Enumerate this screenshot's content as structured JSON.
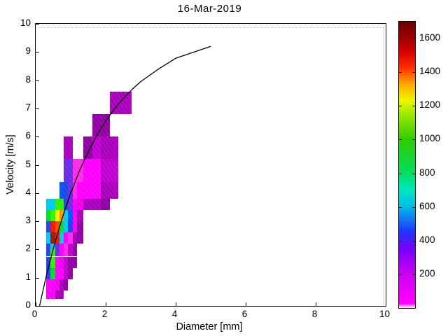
{
  "figure": {
    "title": "16-Mar-2019",
    "background": "#ffffff"
  },
  "axes": {
    "xlabel": "Diameter [mm]",
    "ylabel": "Velocity [m/s]",
    "xticks": [
      0,
      2,
      4,
      6,
      8,
      10
    ],
    "yticks": [
      0,
      1,
      2,
      3,
      4,
      5,
      6,
      7,
      8,
      9,
      10
    ],
    "xlim": [
      0,
      10
    ],
    "ylim": [
      0,
      10
    ],
    "box": true
  },
  "colorbar": {
    "range": [
      0,
      1700
    ],
    "ticks": [
      200,
      400,
      600,
      800,
      1000,
      1200,
      1400,
      1600
    ],
    "gradient": [
      [
        0.0,
        "#FFFFFF"
      ],
      [
        1.5,
        "#FF00FF"
      ],
      [
        11.8,
        "#CC00F0"
      ],
      [
        20.6,
        "#7700F8"
      ],
      [
        26.5,
        "#2233FF"
      ],
      [
        35.3,
        "#00BBE8"
      ],
      [
        41.2,
        "#00E8C0"
      ],
      [
        47.1,
        "#00E060"
      ],
      [
        58.8,
        "#30CC00"
      ],
      [
        67.6,
        "#99E800"
      ],
      [
        72.4,
        "#EEF500"
      ],
      [
        78.2,
        "#FFAA00"
      ],
      [
        84.1,
        "#FF2A00"
      ],
      [
        89.4,
        "#D40000"
      ],
      [
        95.3,
        "#960000"
      ],
      [
        100.0,
        "#6A0000"
      ]
    ]
  },
  "palette": {
    "magenta": {
      "hex": "#FF00FF",
      "count": 80
    },
    "magenta2": {
      "hex": "#F200EE",
      "count": 120
    },
    "pink": {
      "hex": "#FF2BE8",
      "count": 60
    },
    "mpurple": {
      "hex": "#C000D0",
      "count": 170
    },
    "purple": {
      "hex": "#AA00BC",
      "count": 200
    },
    "darkpurple": {
      "hex": "#9000A4",
      "count": 240
    },
    "violet": {
      "hex": "#6D2BE8",
      "count": 330
    },
    "blue": {
      "hex": "#2244E8",
      "count": 420
    },
    "brightblue": {
      "hex": "#0055FF",
      "count": 480
    },
    "cyan": {
      "hex": "#00C8F0",
      "count": 620
    },
    "green": {
      "hex": "#00DC28",
      "count": 850
    },
    "brightgreen": {
      "hex": "#33F000",
      "count": 1000
    },
    "yellow": {
      "hex": "#E8F800",
      "count": 1200
    },
    "orange": {
      "hex": "#FF9100",
      "count": 1330
    },
    "redorange": {
      "hex": "#FF4400",
      "count": 1400
    },
    "red": {
      "hex": "#F01800",
      "count": 1500
    },
    "darkred": {
      "hex": "#8A2015",
      "count": 1680
    }
  },
  "chart_data": {
    "type": "heatmap",
    "title": "16-Mar-2019",
    "xlabel": "Diameter [mm]",
    "ylabel": "Velocity [m/s]",
    "xlim": [
      0,
      10
    ],
    "ylim": [
      0,
      10
    ],
    "colorbar_range": [
      0,
      1700
    ],
    "legend_position": "right-colorbar",
    "grid": false,
    "cells": [
      [
        0.312,
        0.562,
        0.25,
        0.55,
        "magenta"
      ],
      [
        0.562,
        0.812,
        0.25,
        0.55,
        "purple"
      ],
      [
        0.312,
        0.562,
        0.55,
        0.95,
        "magenta"
      ],
      [
        0.562,
        0.687,
        0.55,
        0.95,
        "magenta2"
      ],
      [
        0.687,
        0.812,
        0.55,
        0.95,
        "purple"
      ],
      [
        0.812,
        0.937,
        0.55,
        0.95,
        "darkpurple"
      ],
      [
        0.312,
        0.437,
        0.95,
        1.35,
        "blue"
      ],
      [
        0.437,
        0.562,
        0.95,
        1.35,
        "green"
      ],
      [
        0.562,
        0.812,
        0.95,
        1.35,
        "magenta"
      ],
      [
        0.812,
        0.937,
        0.95,
        1.35,
        "mpurple"
      ],
      [
        0.937,
        1.062,
        0.95,
        1.35,
        "darkpurple"
      ],
      [
        0.312,
        0.437,
        1.35,
        1.75,
        "blue"
      ],
      [
        0.437,
        0.562,
        1.35,
        1.75,
        "brightgreen"
      ],
      [
        0.562,
        0.687,
        1.35,
        1.75,
        "magenta"
      ],
      [
        0.687,
        0.812,
        1.35,
        1.75,
        "magenta2"
      ],
      [
        0.812,
        0.937,
        1.35,
        1.75,
        "mpurple"
      ],
      [
        0.937,
        1.187,
        1.35,
        1.75,
        "darkpurple"
      ],
      [
        0.312,
        0.437,
        1.75,
        2.2,
        "blue"
      ],
      [
        0.437,
        0.562,
        1.75,
        2.0,
        "brightgreen"
      ],
      [
        0.437,
        0.562,
        2.0,
        2.2,
        "cyan"
      ],
      [
        0.562,
        0.687,
        1.75,
        2.2,
        "violet"
      ],
      [
        0.687,
        0.812,
        1.75,
        2.2,
        "magenta"
      ],
      [
        0.812,
        0.937,
        1.75,
        2.2,
        "pink"
      ],
      [
        0.937,
        1.062,
        1.75,
        2.2,
        "mpurple"
      ],
      [
        1.062,
        1.187,
        1.75,
        2.2,
        "darkpurple"
      ],
      [
        0.312,
        0.437,
        2.2,
        2.6,
        "cyan"
      ],
      [
        0.437,
        0.562,
        2.2,
        2.6,
        "darkred"
      ],
      [
        0.562,
        0.687,
        2.2,
        2.6,
        "red"
      ],
      [
        0.687,
        0.812,
        2.2,
        2.6,
        "cyan"
      ],
      [
        0.812,
        0.937,
        2.2,
        2.6,
        "magenta"
      ],
      [
        0.937,
        1.062,
        2.2,
        2.6,
        "pink"
      ],
      [
        1.062,
        1.187,
        2.2,
        2.6,
        "purple"
      ],
      [
        1.187,
        1.375,
        2.2,
        2.6,
        "darkpurple"
      ],
      [
        0.312,
        0.437,
        2.6,
        3.0,
        "blue"
      ],
      [
        0.437,
        0.562,
        2.6,
        3.0,
        "red"
      ],
      [
        0.562,
        0.687,
        2.6,
        3.0,
        "redorange"
      ],
      [
        0.687,
        0.812,
        2.6,
        3.0,
        "green"
      ],
      [
        0.812,
        0.937,
        2.6,
        3.0,
        "cyan"
      ],
      [
        0.937,
        1.062,
        2.6,
        3.0,
        "blue"
      ],
      [
        1.062,
        1.187,
        2.6,
        3.0,
        "magenta"
      ],
      [
        1.187,
        1.375,
        2.6,
        3.0,
        "darkpurple"
      ],
      [
        0.312,
        0.437,
        3.0,
        3.4,
        "green"
      ],
      [
        0.437,
        0.562,
        3.0,
        3.4,
        "brightgreen"
      ],
      [
        0.562,
        0.687,
        3.0,
        3.4,
        "yellow"
      ],
      [
        0.687,
        0.812,
        3.0,
        3.4,
        "orange"
      ],
      [
        0.812,
        0.937,
        3.0,
        3.4,
        "cyan"
      ],
      [
        0.937,
        1.062,
        3.0,
        3.4,
        "brightblue"
      ],
      [
        1.062,
        1.187,
        3.0,
        3.4,
        "magenta"
      ],
      [
        1.187,
        1.375,
        3.0,
        3.4,
        "purple"
      ],
      [
        0.312,
        0.562,
        3.4,
        3.8,
        "cyan"
      ],
      [
        0.562,
        0.812,
        3.4,
        3.8,
        "brightgreen"
      ],
      [
        0.812,
        0.937,
        3.4,
        3.8,
        "blue"
      ],
      [
        0.937,
        1.062,
        3.4,
        3.8,
        "violet"
      ],
      [
        1.062,
        1.187,
        3.4,
        3.8,
        "magenta"
      ],
      [
        1.187,
        1.375,
        3.4,
        3.8,
        "magenta2"
      ],
      [
        1.375,
        1.625,
        3.4,
        3.8,
        "purple"
      ],
      [
        1.625,
        1.875,
        3.4,
        3.8,
        "purple"
      ],
      [
        1.875,
        2.125,
        3.4,
        3.8,
        "darkpurple"
      ],
      [
        0.687,
        0.812,
        3.8,
        4.4,
        "brightblue"
      ],
      [
        0.812,
        0.937,
        3.8,
        4.4,
        "blue"
      ],
      [
        0.937,
        1.062,
        3.8,
        4.4,
        "violet"
      ],
      [
        1.062,
        1.187,
        3.8,
        4.4,
        "pink"
      ],
      [
        1.187,
        1.375,
        3.8,
        4.4,
        "magenta"
      ],
      [
        1.375,
        1.875,
        3.8,
        4.4,
        "magenta"
      ],
      [
        1.875,
        2.375,
        3.8,
        4.4,
        "purple"
      ],
      [
        0.812,
        1.062,
        4.4,
        5.2,
        "violet"
      ],
      [
        1.062,
        1.375,
        4.4,
        5.2,
        "pink"
      ],
      [
        1.375,
        1.875,
        4.4,
        5.2,
        "magenta"
      ],
      [
        1.875,
        2.375,
        4.4,
        5.2,
        "mpurple"
      ],
      [
        0.812,
        1.062,
        5.2,
        6.0,
        "purple"
      ],
      [
        1.375,
        1.625,
        5.2,
        6.0,
        "darkpurple"
      ],
      [
        1.625,
        1.875,
        5.2,
        6.0,
        "mpurple"
      ],
      [
        1.875,
        2.375,
        5.2,
        6.0,
        "purple"
      ],
      [
        1.625,
        2.125,
        6.0,
        6.8,
        "darkpurple"
      ],
      [
        2.125,
        2.75,
        6.8,
        7.6,
        "purple"
      ]
    ],
    "curve": {
      "name": "terminal-velocity-curve",
      "color": "#000000",
      "points": [
        [
          0.109,
          0.0
        ],
        [
          0.3,
          1.05
        ],
        [
          0.5,
          2.02
        ],
        [
          0.75,
          3.08
        ],
        [
          1.0,
          4.0
        ],
        [
          1.25,
          4.79
        ],
        [
          1.5,
          5.46
        ],
        [
          1.75,
          6.05
        ],
        [
          2.0,
          6.55
        ],
        [
          2.25,
          6.98
        ],
        [
          2.5,
          7.35
        ],
        [
          2.75,
          7.67
        ],
        [
          3.0,
          7.95
        ],
        [
          3.5,
          8.39
        ],
        [
          4.0,
          8.78
        ],
        [
          5.0,
          9.2
        ]
      ]
    }
  }
}
